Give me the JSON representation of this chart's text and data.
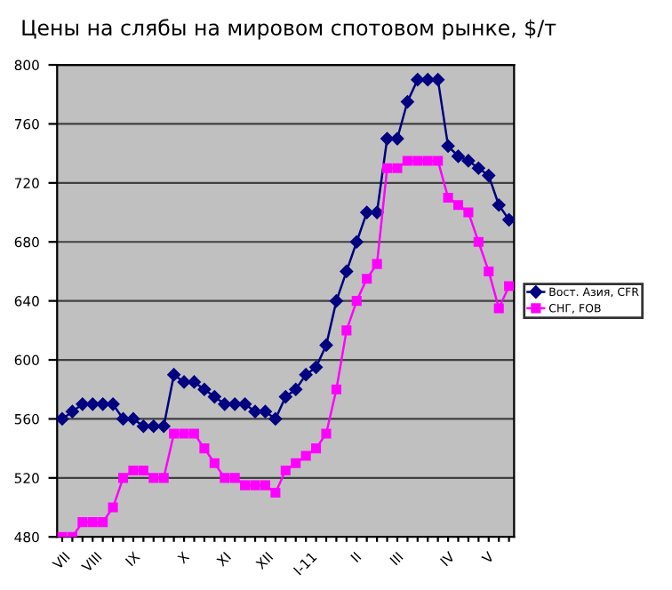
{
  "chart_data": {
    "type": "line",
    "title": "Цены на слябы на мировом спотовом рынке, $/т",
    "categories": [
      "VII",
      null,
      null,
      "VIII",
      null,
      null,
      null,
      "IX",
      null,
      null,
      null,
      null,
      "X",
      null,
      null,
      null,
      "XI",
      null,
      null,
      null,
      "XII",
      null,
      null,
      null,
      "I-11",
      null,
      null,
      null,
      null,
      "II",
      null,
      null,
      null,
      "III",
      null,
      null,
      null,
      null,
      "IV",
      null,
      null,
      null,
      "V",
      null,
      null
    ],
    "series": [
      {
        "name": "Вост. Азия, CFR",
        "color": "#000080",
        "marker": "diamond",
        "values": [
          560,
          565,
          570,
          570,
          570,
          570,
          560,
          560,
          555,
          555,
          555,
          590,
          585,
          585,
          580,
          575,
          570,
          570,
          570,
          565,
          565,
          560,
          575,
          580,
          590,
          595,
          610,
          640,
          660,
          680,
          700,
          700,
          750,
          750,
          775,
          790,
          790,
          790,
          745,
          738,
          735,
          730,
          725,
          705,
          695
        ]
      },
      {
        "name": "СНГ, FOB",
        "color": "#ff00ff",
        "marker": "square",
        "values": [
          480,
          480,
          490,
          490,
          490,
          500,
          520,
          525,
          525,
          520,
          520,
          550,
          550,
          550,
          540,
          530,
          520,
          520,
          515,
          515,
          515,
          510,
          525,
          530,
          535,
          540,
          550,
          580,
          620,
          640,
          655,
          665,
          730,
          730,
          735,
          735,
          735,
          735,
          710,
          705,
          700,
          680,
          660,
          635,
          650
        ]
      }
    ],
    "ylim": [
      480,
      800
    ],
    "yticks": [
      480,
      520,
      560,
      600,
      640,
      680,
      720,
      760,
      800
    ],
    "grid": "y",
    "legend": "right",
    "line_style": "solid"
  }
}
